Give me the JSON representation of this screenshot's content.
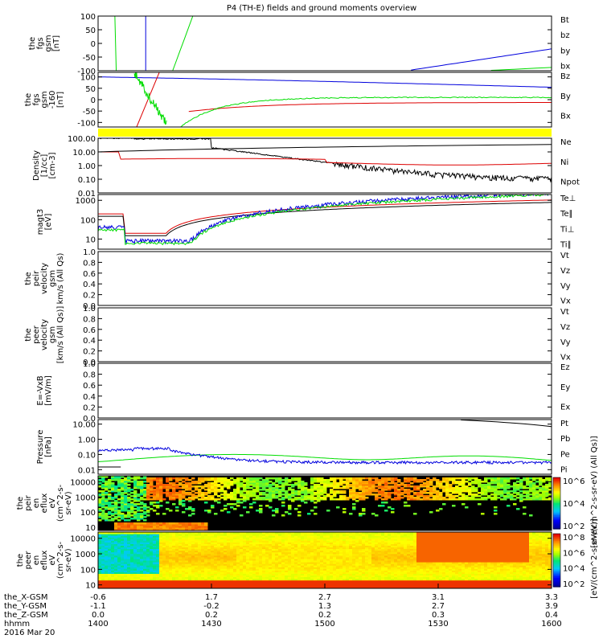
{
  "title": "P4 (TH-E) fields and ground moments overview",
  "colors": {
    "black": "#000000",
    "red": "#dd0000",
    "green": "#00dd00",
    "blue": "#0000dd",
    "yellow": "#ffff00"
  },
  "chart_data": [
    {
      "type": "line",
      "id": "fgs",
      "ylabel": [
        "the",
        "fgs",
        "gsm",
        "[nT]"
      ],
      "ylim": [
        -100,
        100
      ],
      "yticks": [
        "100",
        "50",
        "0",
        "-50",
        "-100"
      ],
      "legend": [
        {
          "name": "Bt",
          "color": "black"
        },
        {
          "name": "bz",
          "color": "red"
        },
        {
          "name": "by",
          "color": "green"
        },
        {
          "name": "bx",
          "color": "blue"
        }
      ]
    },
    {
      "type": "line",
      "id": "fgs2",
      "ylabel": [
        "the",
        "fgs",
        "gsm",
        "-160",
        "[nT]"
      ],
      "ylim": [
        -120,
        120
      ],
      "yticks": [
        "100",
        "50",
        "0",
        "-50",
        "-100"
      ],
      "legend": [
        {
          "name": "Bz",
          "color": "red"
        },
        {
          "name": "By",
          "color": "green"
        },
        {
          "name": "Bx",
          "color": "blue"
        }
      ]
    },
    {
      "type": "line",
      "id": "density",
      "scale": "log",
      "ylabel": [
        "Density",
        "[1/cc]",
        "[cm-3]"
      ],
      "ylim": [
        0.01,
        100
      ],
      "yticks": [
        "100.00",
        "10.00",
        "1.00",
        "0.10",
        "0.01"
      ],
      "legend": [
        {
          "name": "Ne",
          "color": "red"
        },
        {
          "name": "Ni",
          "color": "black"
        },
        {
          "name": "Npot",
          "color": "blue"
        }
      ]
    },
    {
      "type": "line",
      "id": "temp",
      "scale": "log",
      "ylabel": [
        "magt3",
        "[eV]"
      ],
      "ylim": [
        3,
        2000
      ],
      "yticks": [
        "1000",
        "100",
        "10"
      ],
      "legend": [
        {
          "name": "Te⊥",
          "color": "red"
        },
        {
          "name": "Te∥",
          "color": "black"
        },
        {
          "name": "Ti⊥",
          "color": "blue"
        },
        {
          "name": "Ti∥",
          "color": "green"
        }
      ]
    },
    {
      "type": "line",
      "id": "peirvel",
      "ylabel": [
        "the",
        "peir",
        "velocity",
        "gsm",
        "km/s (All Qs)"
      ],
      "ylim": [
        0,
        1
      ],
      "yticks": [
        "1.0",
        "0.8",
        "0.6",
        "0.4",
        "0.2",
        "0.0"
      ],
      "legend": [
        {
          "name": "Vt",
          "color": "black"
        },
        {
          "name": "Vz",
          "color": "red"
        },
        {
          "name": "Vy",
          "color": "green"
        },
        {
          "name": "Vx",
          "color": "blue"
        }
      ]
    },
    {
      "type": "line",
      "id": "peervel",
      "ylabel": [
        "the",
        "peer",
        "velocity",
        "gsm",
        "[km/s (All Qs)]"
      ],
      "ylim": [
        0,
        1
      ],
      "yticks": [
        "1.0",
        "0.8",
        "0.6",
        "0.4",
        "0.2",
        "0.0"
      ],
      "legend": [
        {
          "name": "Vt",
          "color": "black"
        },
        {
          "name": "Vz",
          "color": "red"
        },
        {
          "name": "Vy",
          "color": "green"
        },
        {
          "name": "Vx",
          "color": "blue"
        }
      ]
    },
    {
      "type": "line",
      "id": "efield",
      "ylabel": [
        "E=-VxB",
        "[mV/m]"
      ],
      "ylim": [
        0,
        1
      ],
      "yticks": [
        "1.0",
        "0.8",
        "0.6",
        "0.4",
        "0.2",
        "0.0"
      ],
      "legend": [
        {
          "name": "Ez",
          "color": "red"
        },
        {
          "name": "Ey",
          "color": "green"
        },
        {
          "name": "Ex",
          "color": "blue"
        }
      ]
    },
    {
      "type": "line",
      "id": "pressure",
      "scale": "log",
      "ylabel": [
        "Pressure",
        "[nPa]"
      ],
      "ylim": [
        0.005,
        20
      ],
      "yticks": [
        "10.00",
        "1.00",
        "0.10",
        "0.01"
      ],
      "legend": [
        {
          "name": "Pt",
          "color": "black"
        },
        {
          "name": "Pb",
          "color": "red"
        },
        {
          "name": "Pe",
          "color": "green"
        },
        {
          "name": "Pi",
          "color": "blue"
        }
      ]
    },
    {
      "type": "heatmap",
      "id": "peir",
      "ylabel": [
        "the",
        "peir",
        "en",
        "eflux",
        "eV",
        "(cm^2-s-",
        "sr-eV)"
      ],
      "ylim": [
        6,
        25000
      ],
      "yticks": [
        "10000",
        "1000",
        "100",
        "10"
      ],
      "colorbar": {
        "label": "[eV/(cm^2-s-sr-eV) (All Qs)]",
        "ticks": [
          "10^6",
          "10^4",
          "10^2"
        ]
      }
    },
    {
      "type": "heatmap",
      "id": "peer",
      "ylabel": [
        "the",
        "peer",
        "en",
        "eflux",
        "eV",
        "(cm^2-s-",
        "sr-eV)"
      ],
      "ylim": [
        6,
        25000
      ],
      "yticks": [
        "10000",
        "1000",
        "100",
        "10"
      ],
      "colorbar": {
        "label": "[eV/(cm^2-s-sr-eV)]",
        "ticks": [
          "10^8",
          "10^6",
          "10^4",
          "10^2"
        ]
      }
    }
  ],
  "xaxis": {
    "range": [
      "14:00",
      "16:00"
    ],
    "tick_times": [
      "14:00",
      "14:30",
      "15:00",
      "15:30",
      "16:00"
    ],
    "rows": [
      {
        "label": "the_X-GSM",
        "values": [
          "-0.6",
          "1.7",
          "2.7",
          "3.1",
          "3.3"
        ]
      },
      {
        "label": "the_Y-GSM",
        "values": [
          "-1.1",
          "-0.2",
          "1.3",
          "2.7",
          "3.9"
        ]
      },
      {
        "label": "the_Z-GSM",
        "values": [
          "0.0",
          "0.2",
          "0.2",
          "0.3",
          "0.4"
        ]
      },
      {
        "label": "hhmm",
        "values": [
          "1400",
          "1430",
          "1500",
          "1530",
          "1600"
        ]
      }
    ],
    "date": "2016 Mar 20"
  }
}
